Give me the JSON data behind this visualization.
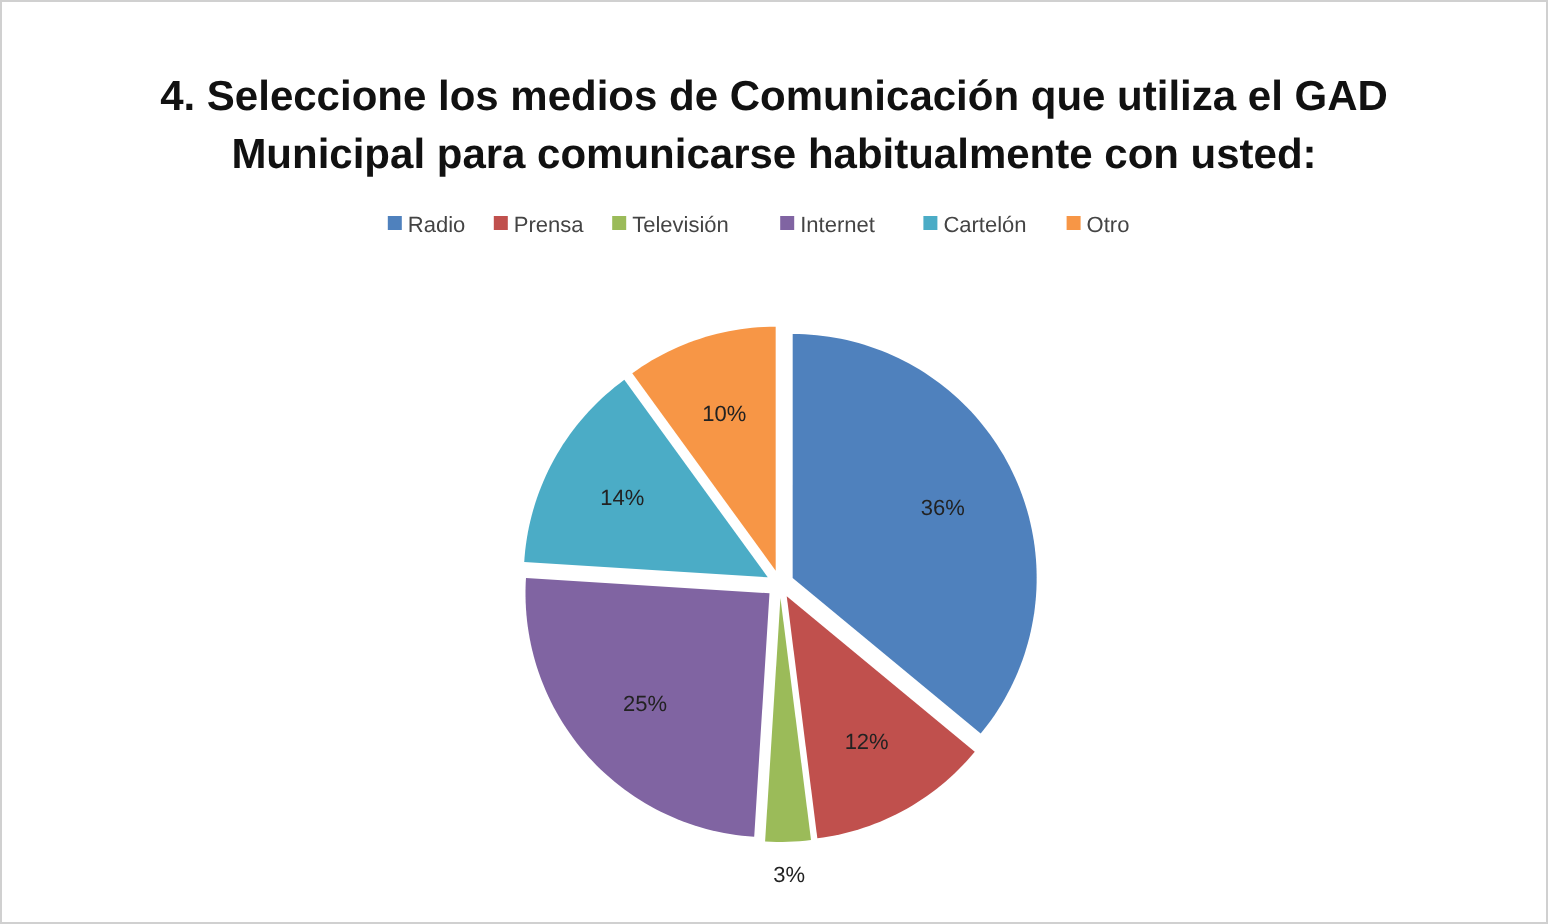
{
  "chart_data": {
    "type": "pie",
    "title": "4. Seleccione los medios de Comunicación que utiliza el GAD Municipal para comunicarse habitualmente con usted:",
    "categories": [
      "Radio",
      "Prensa",
      "Televisión",
      "Internet",
      "Cartelón",
      "Otro"
    ],
    "values": [
      36,
      12,
      3,
      25,
      14,
      10
    ],
    "value_labels": [
      "36%",
      "12%",
      "3%",
      "25%",
      "14%",
      "10%"
    ],
    "colors": [
      "#4f81bd",
      "#c0504d",
      "#9bbb59",
      "#8064a2",
      "#4bacc6",
      "#f79646"
    ],
    "legend": "top"
  }
}
